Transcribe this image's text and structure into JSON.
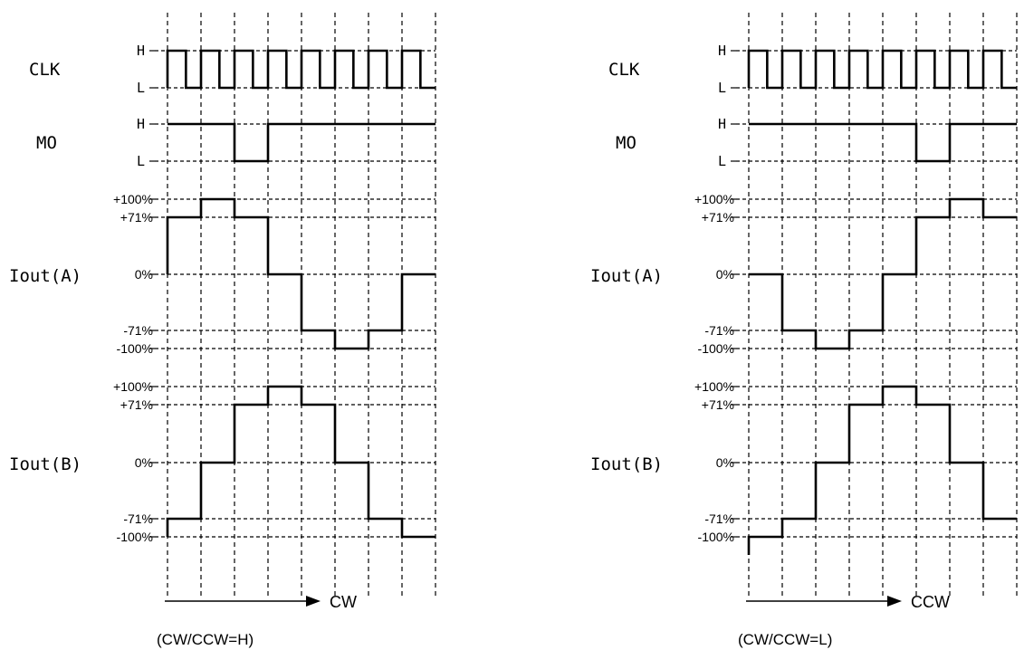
{
  "panels": [
    {
      "id": "cw",
      "arrow_label": "CW",
      "caption": "(CW/CCW=H)",
      "signals": {
        "clk": {
          "name": "CLK",
          "levels": [
            "H",
            "L"
          ]
        },
        "mo": {
          "name": "MO",
          "levels": [
            "H",
            "L"
          ],
          "sequence": [
            1,
            1,
            0,
            1,
            1,
            1,
            1,
            1
          ]
        },
        "iout_a": {
          "name": "Iout(A)",
          "levels": [
            "+100%",
            "+71%",
            "0%",
            "-71%",
            "-100%"
          ],
          "sequence": [
            71,
            100,
            71,
            0,
            -71,
            -100,
            -71,
            0
          ]
        },
        "iout_b": {
          "name": "Iout(B)",
          "levels": [
            "+100%",
            "+71%",
            "0%",
            "-71%",
            "-100%"
          ],
          "sequence": [
            -71,
            0,
            71,
            100,
            71,
            0,
            -71,
            -100
          ]
        }
      }
    },
    {
      "id": "ccw",
      "arrow_label": "CCW",
      "caption": "(CW/CCW=L)",
      "signals": {
        "clk": {
          "name": "CLK",
          "levels": [
            "H",
            "L"
          ]
        },
        "mo": {
          "name": "MO",
          "levels": [
            "H",
            "L"
          ],
          "sequence": [
            1,
            1,
            1,
            1,
            1,
            0,
            1,
            1
          ]
        },
        "iout_a": {
          "name": "Iout(A)",
          "levels": [
            "+100%",
            "+71%",
            "0%",
            "-71%",
            "-100%"
          ],
          "sequence": [
            0,
            -71,
            -100,
            -71,
            0,
            71,
            100,
            71
          ]
        },
        "iout_b": {
          "name": "Iout(B)",
          "levels": [
            "+100%",
            "+71%",
            "0%",
            "-71%",
            "-100%"
          ],
          "sequence": [
            -100,
            -71,
            0,
            71,
            100,
            71,
            0,
            -71
          ]
        }
      }
    }
  ]
}
